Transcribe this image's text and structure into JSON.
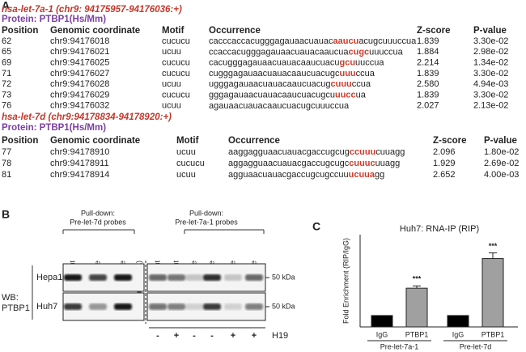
{
  "panel_a": {
    "label": "A",
    "highlight_color": "#d03a2a",
    "sections": [
      {
        "title": "hsa-let-7a-1 (chr9: 94175957-94176036:+)",
        "protein": "Protein: PTBP1(Hs/Mm)",
        "columns": [
          "Position",
          "Genomic coordinate",
          "Motif",
          "Occurrence",
          "Z-score",
          "P-value"
        ],
        "rows": [
          [
            "62",
            "chr9:94176018",
            "cucucu",
            [
              "cacccaccacugggagauaacuauac",
              "aaucu",
              "acugcuuuccua"
            ],
            "1.839",
            "3.30e-02"
          ],
          [
            "65",
            "chr9:94176021",
            "ucuu",
            [
              "ccaccacugggagauaacuauacaaucua",
              "cugc",
              "uuuccua"
            ],
            "1.884",
            "2.98e-02"
          ],
          [
            "69",
            "chr9:94176025",
            "cucucu",
            [
              "cacugggagauaacuauacaaucuacu",
              "gcu",
              "uuccua"
            ],
            "2.214",
            "1.34e-02"
          ],
          [
            "71",
            "chr9:94176027",
            "cucucu",
            [
              "cugggagauaacuauacaaucuacugc",
              "uuu",
              "ccua"
            ],
            "1.839",
            "3.30e-02"
          ],
          [
            "72",
            "chr9:94176028",
            "ucuu",
            [
              "ugggagauaacuauacaaucuacug",
              "cuuu",
              "ccua"
            ],
            "2.580",
            "4.94e-03"
          ],
          [
            "73",
            "chr9:94176029",
            "cucucu",
            [
              "gggagauaacuauacaaucuacugcu",
              "uucc",
              "ua"
            ],
            "1.839",
            "3.30e-02"
          ],
          [
            "76",
            "chr9:94176032",
            "ucuu",
            [
              "agauaacuauacaaucuacugcuuuccua"
            ],
            "2.027",
            "2.13e-02"
          ]
        ]
      },
      {
        "title": "hsa-let-7d (chr9:94178834-94178920:+)",
        "protein": "Protein: PTBP1(Hs/Mm)",
        "columns": [
          "Position",
          "Genomic coordinate",
          "Motif",
          "Occurrence",
          "Z-score",
          "P-value"
        ],
        "rows": [
          [
            "77",
            "chr9:94178910",
            "ucuu",
            [
              "aaggagguaacuauacgaccugcug",
              "ccuuu",
              "cuuagg"
            ],
            "2.096",
            "1.80e-02"
          ],
          [
            "78",
            "chr9:94178911",
            "cucucu",
            [
              "aggagguaacuauacgaccugcugc",
              "cuuuc",
              "uuagg"
            ],
            "1.929",
            "2.69e-02"
          ],
          [
            "81",
            "chr9:94178914",
            "ucuu",
            [
              "agguaacuauacgaccugcugccuu",
              "ucuua",
              "gg"
            ],
            "2.652",
            "4.00e-03"
          ]
        ]
      }
    ]
  },
  "panel_b": {
    "label": "B",
    "pulldown_left": [
      "Pull-down:",
      "Pre-let-7d probes"
    ],
    "pulldown_right": [
      "Pull-down:",
      "Pre-let-7a-1 probes"
    ],
    "lanes": [
      "Input",
      "antisense",
      "sense",
      "Marker (50 kDa)",
      "Input",
      "Input",
      "antisense",
      "sense",
      "antisense",
      "sense"
    ],
    "wb_label": [
      "WB:",
      "PTBP1"
    ],
    "cell_lines": [
      "Hepa1",
      "Huh7"
    ],
    "marker_labels": [
      "50 kDa",
      "50 kDa"
    ],
    "h19_signs": [
      "-",
      "+",
      "-",
      "-",
      "+",
      "+"
    ],
    "h19_label": "H19"
  },
  "chart_data": {
    "type": "bar",
    "label": "C",
    "title": "Huh7: RNA-IP (RIP)",
    "y_label": "Fold Enrichment (RIP/IgG)",
    "categories": [
      "IgG",
      "PTBP1",
      "IgG",
      "PTBP1"
    ],
    "groups": [
      "Pre-let-7a-1",
      "Pre-let-7d"
    ],
    "values": [
      1,
      3.4,
      1,
      6.0
    ],
    "errors": [
      null,
      0.2,
      null,
      0.5
    ],
    "significance": [
      null,
      "***",
      null,
      "***"
    ],
    "colors": [
      "#000000",
      "#a0a0a0",
      "#000000",
      "#a0a0a0"
    ],
    "ylim": [
      0,
      8.1
    ]
  }
}
